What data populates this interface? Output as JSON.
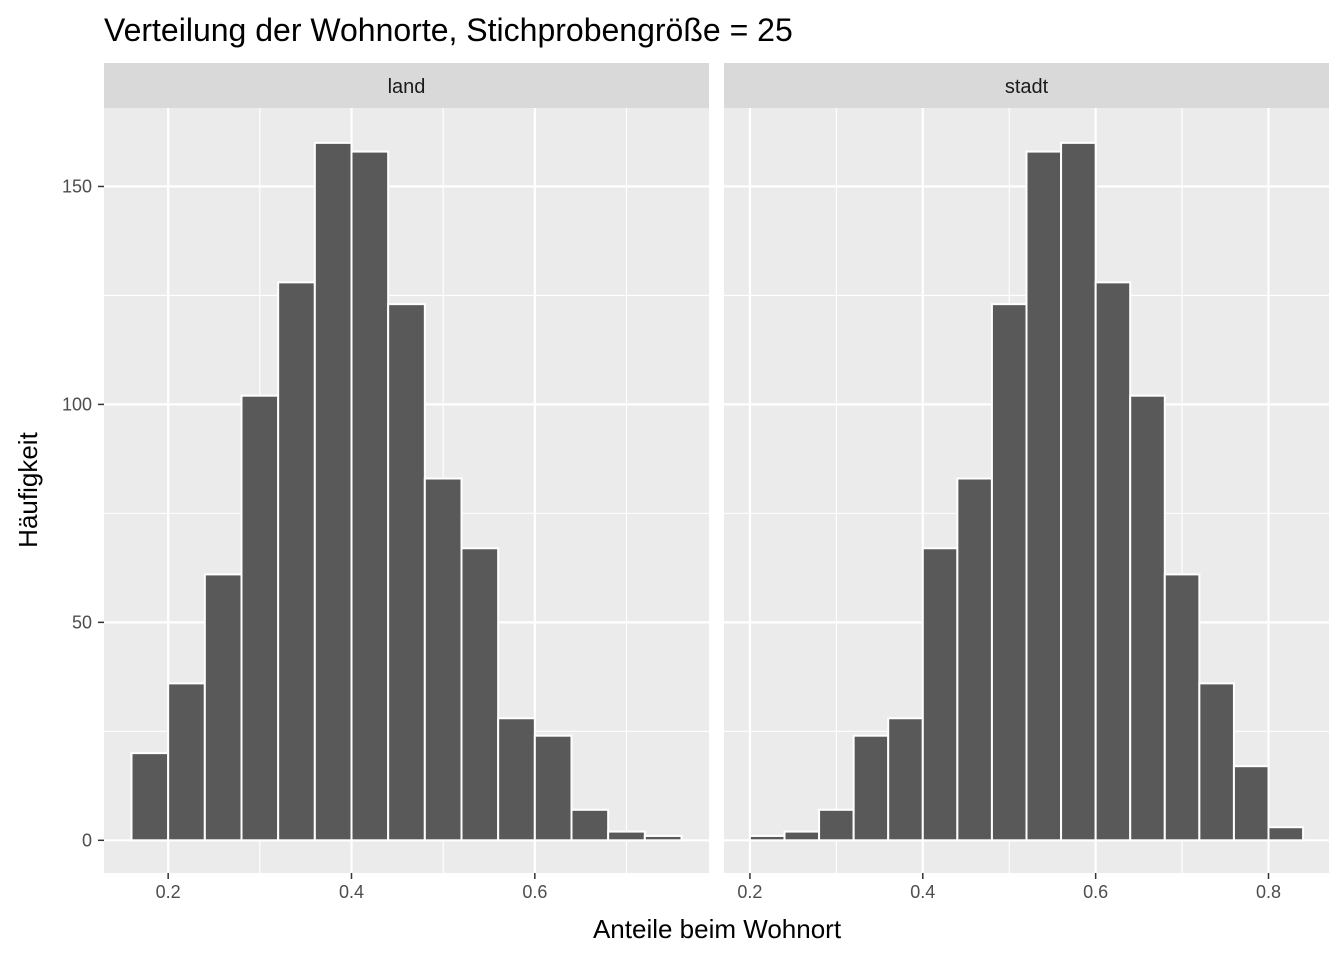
{
  "chart_data": {
    "type": "bar",
    "title": "Verteilung der Wohnorte, Stichprobengröße = 25",
    "xlabel": "Anteile beim Wohnort",
    "ylabel": "Häufigkeit",
    "grid": true,
    "ylim": [
      -7.5,
      168
    ],
    "yticks": [
      0,
      50,
      100,
      150
    ],
    "facets": [
      {
        "name": "land",
        "xlim": [
          0.13,
          0.79
        ],
        "xticks": [
          0.2,
          0.4,
          0.6
        ],
        "bin_width": 0.04,
        "bins": [
          {
            "x": 0.18,
            "count": 20
          },
          {
            "x": 0.22,
            "count": 36
          },
          {
            "x": 0.26,
            "count": 61
          },
          {
            "x": 0.3,
            "count": 102
          },
          {
            "x": 0.34,
            "count": 128
          },
          {
            "x": 0.38,
            "count": 160
          },
          {
            "x": 0.42,
            "count": 158
          },
          {
            "x": 0.46,
            "count": 123
          },
          {
            "x": 0.5,
            "count": 83
          },
          {
            "x": 0.54,
            "count": 67
          },
          {
            "x": 0.58,
            "count": 28
          },
          {
            "x": 0.62,
            "count": 24
          },
          {
            "x": 0.66,
            "count": 7
          },
          {
            "x": 0.7,
            "count": 2
          },
          {
            "x": 0.74,
            "count": 1
          }
        ]
      },
      {
        "name": "stadt",
        "xlim": [
          0.17,
          0.87
        ],
        "xticks": [
          0.2,
          0.4,
          0.6,
          0.8
        ],
        "bin_width": 0.04,
        "bins": [
          {
            "x": 0.22,
            "count": 1
          },
          {
            "x": 0.26,
            "count": 2
          },
          {
            "x": 0.3,
            "count": 7
          },
          {
            "x": 0.34,
            "count": 24
          },
          {
            "x": 0.38,
            "count": 28
          },
          {
            "x": 0.42,
            "count": 67
          },
          {
            "x": 0.46,
            "count": 83
          },
          {
            "x": 0.5,
            "count": 123
          },
          {
            "x": 0.54,
            "count": 158
          },
          {
            "x": 0.58,
            "count": 160
          },
          {
            "x": 0.62,
            "count": 128
          },
          {
            "x": 0.66,
            "count": 102
          },
          {
            "x": 0.7,
            "count": 61
          },
          {
            "x": 0.74,
            "count": 36
          },
          {
            "x": 0.78,
            "count": 17
          },
          {
            "x": 0.82,
            "count": 3
          }
        ]
      }
    ],
    "colors": {
      "bar_fill": "#595959",
      "bar_outline": "#ffffff",
      "panel_background": "#ebebeb",
      "strip_background": "#d9d9d9",
      "grid": "#ffffff"
    }
  }
}
